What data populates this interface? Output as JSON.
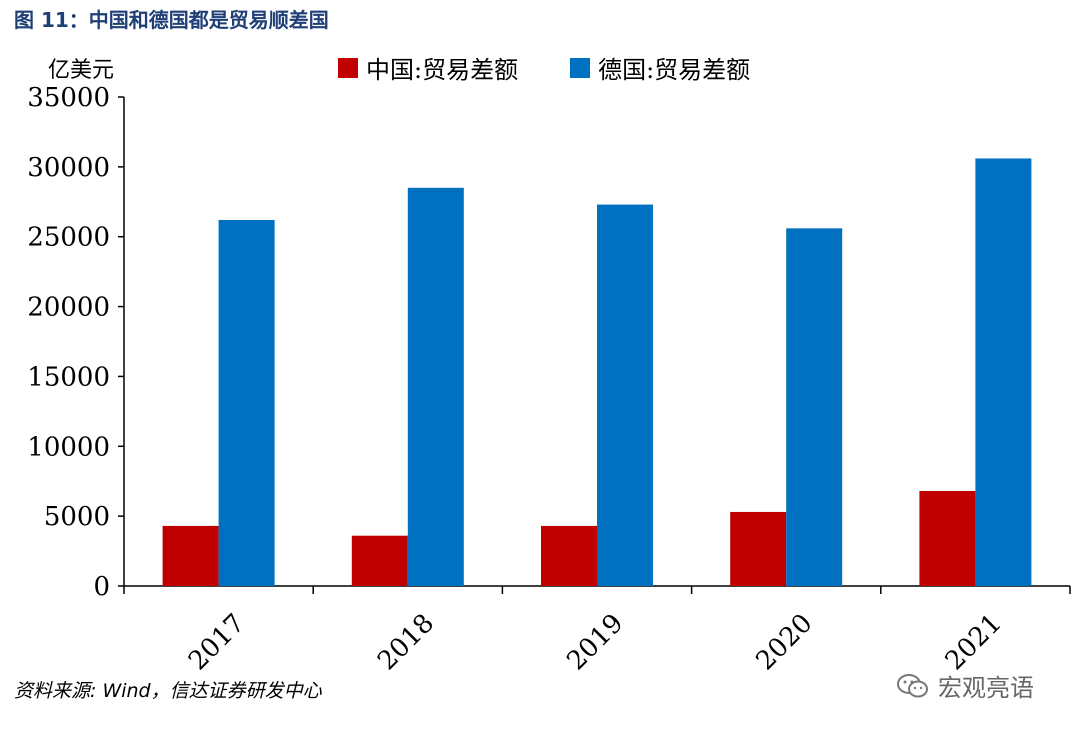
{
  "figure": {
    "title": "图 11：中国和德国都是贸易顺差国",
    "unit": "亿美元",
    "source": "资料来源: Wind，信达证券研发中心",
    "watermark": "宏观亮语",
    "watermark_icon": "wechat-icon"
  },
  "colors": {
    "china": "#c00000",
    "germany": "#0070c0",
    "title": "#1f3f77"
  },
  "chart_data": {
    "type": "bar",
    "categories": [
      "2017",
      "2018",
      "2019",
      "2020",
      "2021"
    ],
    "series": [
      {
        "name": "中国:贸易差额",
        "values": [
          4300,
          3600,
          4300,
          5300,
          6800
        ]
      },
      {
        "name": "德国:贸易差额",
        "values": [
          26200,
          28500,
          27300,
          25600,
          30600
        ]
      }
    ],
    "ylim": [
      0,
      35000
    ],
    "yticks": [
      0,
      5000,
      10000,
      15000,
      20000,
      25000,
      30000,
      35000
    ],
    "ylabel": "亿美元",
    "legend_position": "top",
    "grid": false
  }
}
